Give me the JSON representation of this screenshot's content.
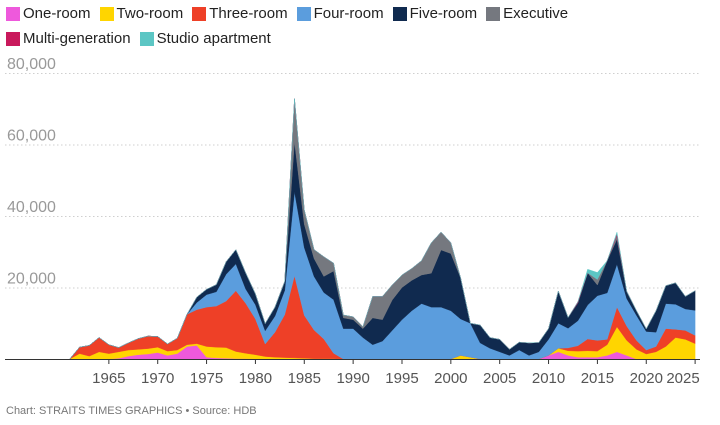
{
  "chart_data": {
    "type": "area",
    "stacked": true,
    "x": [
      1961,
      1962,
      1963,
      1964,
      1965,
      1966,
      1967,
      1968,
      1969,
      1970,
      1971,
      1972,
      1973,
      1974,
      1975,
      1976,
      1977,
      1978,
      1979,
      1980,
      1981,
      1982,
      1983,
      1984,
      1985,
      1986,
      1987,
      1988,
      1989,
      1990,
      1991,
      1992,
      1993,
      1994,
      1995,
      1996,
      1997,
      1998,
      1999,
      2000,
      2001,
      2002,
      2003,
      2004,
      2005,
      2006,
      2007,
      2008,
      2009,
      2010,
      2011,
      2012,
      2013,
      2014,
      2015,
      2016,
      2017,
      2018,
      2019,
      2020,
      2021,
      2022,
      2023,
      2024,
      2025
    ],
    "series": [
      {
        "name": "One-room",
        "color": "#ee59dc",
        "values": [
          0,
          0,
          0,
          0,
          0,
          200,
          800,
          1200,
          1400,
          1800,
          1000,
          1500,
          3500,
          3800,
          500,
          300,
          200,
          100,
          100,
          0,
          0,
          0,
          0,
          0,
          0,
          0,
          0,
          0,
          0,
          0,
          0,
          0,
          0,
          0,
          0,
          0,
          0,
          0,
          0,
          0,
          0,
          0,
          0,
          0,
          0,
          0,
          0,
          0,
          0,
          1000,
          2000,
          1000,
          500,
          500,
          500,
          1000,
          2000,
          1000,
          0,
          0,
          0,
          0,
          0,
          0,
          0
        ]
      },
      {
        "name": "Two-room",
        "color": "#ffd500",
        "values": [
          0,
          1500,
          800,
          2000,
          1500,
          1800,
          1700,
          1500,
          1500,
          1500,
          1200,
          1000,
          500,
          500,
          3000,
          3000,
          3000,
          2000,
          1500,
          1200,
          700,
          500,
          400,
          300,
          200,
          100,
          100,
          100,
          0,
          0,
          0,
          0,
          0,
          0,
          0,
          0,
          0,
          0,
          0,
          0,
          1000,
          500,
          0,
          0,
          0,
          0,
          0,
          0,
          0,
          0,
          1000,
          1300,
          1700,
          1800,
          1700,
          3000,
          7000,
          4200,
          2700,
          1400,
          2000,
          3500,
          6000,
          5500,
          4300
        ]
      },
      {
        "name": "Three-room",
        "color": "#ee4027",
        "values": [
          0,
          1800,
          3000,
          4000,
          2500,
          1200,
          2000,
          3000,
          3500,
          3000,
          2000,
          3300,
          8500,
          9500,
          11000,
          11500,
          13000,
          17000,
          14000,
          10000,
          3500,
          7000,
          12000,
          23000,
          12000,
          8000,
          5500,
          1500,
          0,
          0,
          0,
          0,
          0,
          0,
          0,
          0,
          0,
          0,
          0,
          0,
          0,
          0,
          0,
          0,
          0,
          0,
          0,
          0,
          0,
          0,
          0,
          800,
          1500,
          3300,
          3000,
          1500,
          5500,
          4000,
          2500,
          1100,
          1500,
          5000,
          2300,
          2500,
          2300
        ]
      },
      {
        "name": "Four-room",
        "color": "#5b9ddd",
        "values": [
          0,
          0,
          0,
          0,
          0,
          0,
          0,
          0,
          0,
          0,
          0,
          0,
          0,
          2000,
          3500,
          4000,
          7500,
          7500,
          4000,
          4000,
          3700,
          4500,
          6800,
          23500,
          19000,
          15000,
          13000,
          15000,
          8500,
          8500,
          6000,
          4000,
          5000,
          8000,
          11000,
          13500,
          15500,
          14500,
          14500,
          13500,
          10200,
          9500,
          4500,
          3000,
          2000,
          1000,
          2500,
          1000,
          2000,
          4500,
          7000,
          5500,
          7000,
          9500,
          12500,
          13000,
          12000,
          7700,
          7000,
          5200,
          4000,
          7000,
          7000,
          6000,
          7000
        ]
      },
      {
        "name": "Five-room",
        "color": "#102a4f",
        "values": [
          0,
          0,
          0,
          0,
          0,
          0,
          0,
          0,
          0,
          0,
          0,
          0,
          0,
          1500,
          1500,
          2000,
          3500,
          4000,
          4500,
          3000,
          2000,
          2500,
          2500,
          14000,
          6500,
          5000,
          4500,
          8000,
          3000,
          2500,
          2500,
          7500,
          6000,
          8500,
          9000,
          8500,
          8000,
          9500,
          16000,
          16000,
          11500,
          0,
          5000,
          3000,
          3500,
          1700,
          2200,
          3500,
          2600,
          3000,
          9000,
          3000,
          5000,
          9000,
          3000,
          9000,
          7000,
          2000,
          1300,
          700,
          6000,
          5000,
          6000,
          3500,
          5500
        ]
      },
      {
        "name": "Executive",
        "color": "#75787f",
        "values": [
          0,
          0,
          0,
          0,
          0,
          0,
          0,
          0,
          0,
          0,
          0,
          0,
          0,
          0,
          0,
          0,
          0,
          0,
          0,
          0,
          0,
          0,
          0,
          12000,
          4000,
          2500,
          5500,
          2200,
          800,
          800,
          500,
          6000,
          6500,
          4200,
          3500,
          3300,
          4000,
          8500,
          5000,
          3000,
          0,
          0,
          0,
          0,
          0,
          0,
          0,
          0,
          0,
          0,
          0,
          0,
          0,
          0,
          1500,
          0,
          1000,
          0,
          0,
          0,
          0,
          0,
          0,
          0,
          0
        ]
      },
      {
        "name": "Multi-generation",
        "color": "#c9195c",
        "values": [
          0,
          0,
          0,
          0,
          0,
          0,
          0,
          0,
          0,
          0,
          0,
          0,
          0,
          0,
          0,
          0,
          0,
          0,
          0,
          0,
          0,
          0,
          0,
          0,
          0,
          0,
          0,
          0,
          0,
          0,
          0,
          0,
          0,
          0,
          0,
          0,
          0,
          0,
          0,
          0,
          0,
          0,
          0,
          0,
          0,
          0,
          0,
          0,
          0,
          0,
          0,
          0,
          300,
          0,
          0,
          0,
          500,
          0,
          0,
          0,
          0,
          0,
          0,
          0,
          0
        ]
      },
      {
        "name": "Studio apartment",
        "color": "#5cc6c4",
        "values": [
          0,
          0,
          0,
          0,
          0,
          0,
          0,
          0,
          0,
          0,
          0,
          0,
          0,
          0,
          0,
          0,
          0,
          0,
          0,
          0,
          0,
          0,
          0,
          0,
          0,
          0,
          0,
          0,
          0,
          0,
          0,
          0,
          0,
          0,
          0,
          0,
          0,
          0,
          0,
          0,
          0,
          0,
          0,
          0,
          0,
          0,
          0,
          0,
          0,
          0,
          0,
          0,
          0,
          1000,
          2000,
          0,
          500,
          0,
          0,
          0,
          0,
          0,
          0,
          0,
          0
        ]
      }
    ],
    "xticks": [
      1965,
      1970,
      1975,
      1980,
      1985,
      1990,
      1995,
      2000,
      2005,
      2010,
      2015,
      2020,
      2025
    ],
    "yticks": [
      20000,
      40000,
      60000,
      80000
    ],
    "ytick_labels": [
      "20,000",
      "40,000",
      "60,000",
      "80,000"
    ],
    "ylim": [
      0,
      80000
    ],
    "xlim": [
      1960,
      2025.5
    ],
    "grid": "horizontal-dotted",
    "legend_position": "top"
  },
  "credit": "Chart: STRAITS TIMES GRAPHICS • Source: HDB"
}
